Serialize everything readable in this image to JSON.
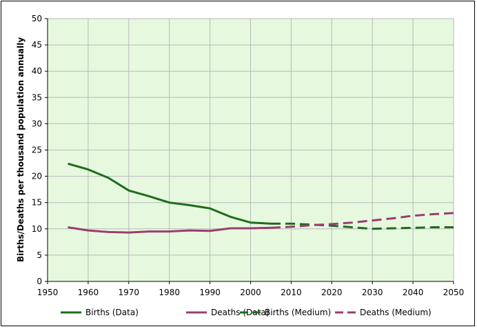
{
  "chart_data": {
    "type": "line",
    "xlabel": "",
    "ylabel": "Births/Deaths per thousand population annually",
    "xlim": [
      1950,
      2050
    ],
    "ylim": [
      0,
      50
    ],
    "x_ticks": [
      "1950",
      "1960",
      "1970",
      "1980",
      "1990",
      "2000",
      "2010",
      "2020",
      "2030",
      "2040",
      "2050"
    ],
    "y_ticks": [
      "0",
      "5",
      "10",
      "15",
      "20",
      "25",
      "30",
      "35",
      "40",
      "45",
      "50"
    ],
    "grid": true,
    "legend_position": "bottom",
    "colors": {
      "births": "#1e6b1e",
      "deaths": "#9c3c72",
      "plot_bg": "#e6f9de",
      "grid": "#b8b8b8"
    },
    "series": [
      {
        "name": "Births (Data)",
        "style": "solid",
        "color": "#1e6b1e",
        "x": [
          1955,
          1960,
          1965,
          1970,
          1975,
          1980,
          1985,
          1990,
          1995,
          2000,
          2005
        ],
        "y": [
          22.4,
          21.3,
          19.7,
          17.3,
          16.2,
          15.0,
          14.5,
          13.9,
          12.3,
          11.2,
          11.0
        ]
      },
      {
        "name": "Deaths (Data)",
        "style": "solid",
        "color": "#9c3c72",
        "x": [
          1955,
          1960,
          1965,
          1970,
          1975,
          1980,
          1985,
          1990,
          1995,
          2000,
          2005
        ],
        "y": [
          10.3,
          9.7,
          9.4,
          9.3,
          9.5,
          9.5,
          9.7,
          9.6,
          10.1,
          10.1,
          10.2
        ]
      },
      {
        "name": "Births (Medium)",
        "style": "dashed",
        "color": "#1e6b1e",
        "x": [
          2005,
          2010,
          2015,
          2020,
          2025,
          2030,
          2035,
          2040,
          2045,
          2050
        ],
        "y": [
          11.0,
          11.0,
          10.8,
          10.6,
          10.3,
          10.0,
          10.1,
          10.2,
          10.3,
          10.3
        ]
      },
      {
        "name": "Deaths (Medium)",
        "style": "dashed",
        "color": "#9c3c72",
        "x": [
          2005,
          2010,
          2015,
          2020,
          2025,
          2030,
          2035,
          2040,
          2045,
          2050
        ],
        "y": [
          10.2,
          10.4,
          10.7,
          10.9,
          11.2,
          11.6,
          12.0,
          12.5,
          12.8,
          13.0
        ]
      }
    ]
  }
}
